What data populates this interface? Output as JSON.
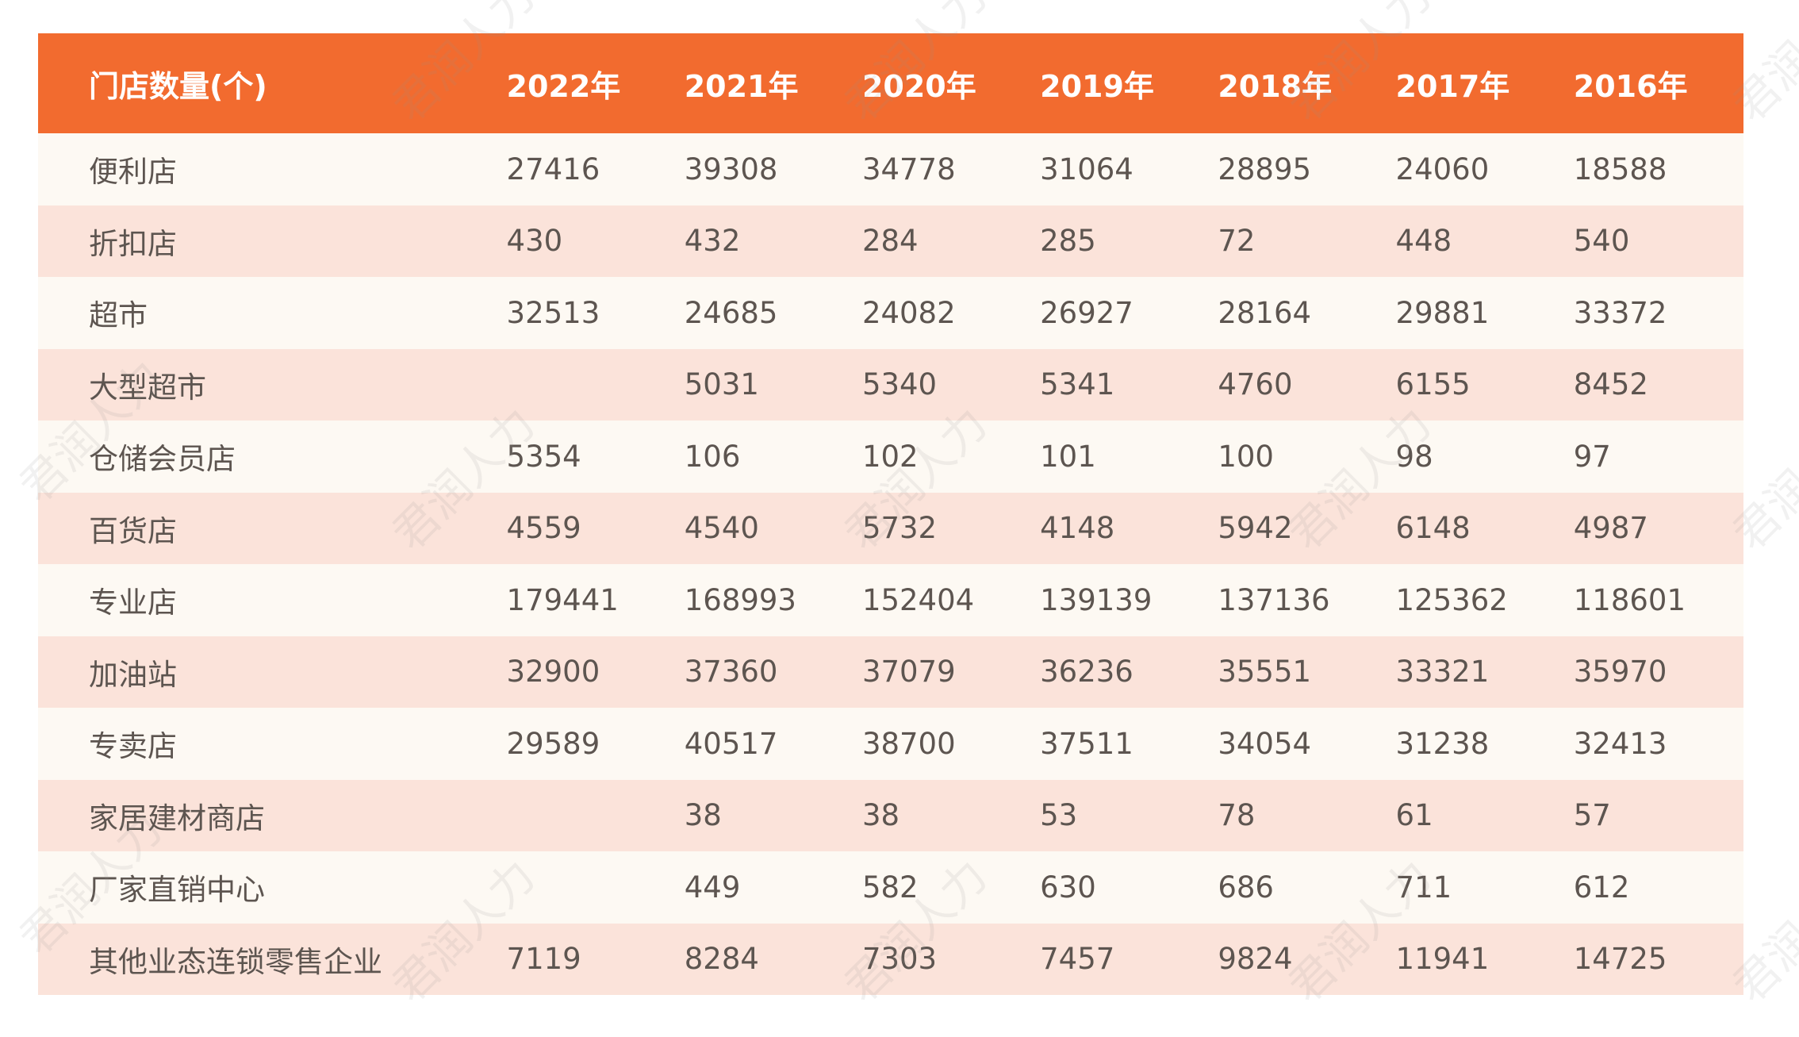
{
  "chart_data": {
    "type": "table",
    "header": {
      "corner": "门店数量(个)",
      "years": [
        "2022年",
        "2021年",
        "2020年",
        "2019年",
        "2018年",
        "2017年",
        "2016年"
      ]
    },
    "rows": [
      {
        "label": "便利店",
        "values": [
          "27416",
          "39308",
          "34778",
          "31064",
          "28895",
          "24060",
          "18588"
        ]
      },
      {
        "label": "折扣店",
        "values": [
          "430",
          "432",
          "284",
          "285",
          "72",
          "448",
          "540"
        ]
      },
      {
        "label": "超市",
        "values": [
          "32513",
          "24685",
          "24082",
          "26927",
          "28164",
          "29881",
          "33372"
        ]
      },
      {
        "label": "大型超市",
        "values": [
          "",
          "5031",
          "5340",
          "5341",
          "4760",
          "6155",
          "8452"
        ]
      },
      {
        "label": "仓储会员店",
        "values": [
          "5354",
          "106",
          "102",
          "101",
          "100",
          "98",
          "97"
        ]
      },
      {
        "label": "百货店",
        "values": [
          "4559",
          "4540",
          "5732",
          "4148",
          "5942",
          "6148",
          "4987"
        ]
      },
      {
        "label": "专业店",
        "values": [
          "179441",
          "168993",
          "152404",
          "139139",
          "137136",
          "125362",
          "118601"
        ]
      },
      {
        "label": "加油站",
        "values": [
          "32900",
          "37360",
          "37079",
          "36236",
          "35551",
          "33321",
          "35970"
        ]
      },
      {
        "label": "专卖店",
        "values": [
          "29589",
          "40517",
          "38700",
          "37511",
          "34054",
          "31238",
          "32413"
        ]
      },
      {
        "label": "家居建材商店",
        "values": [
          "",
          "38",
          "38",
          "53",
          "78",
          "61",
          "57"
        ]
      },
      {
        "label": "厂家直销中心",
        "values": [
          "",
          "449",
          "582",
          "630",
          "686",
          "711",
          "612"
        ]
      },
      {
        "label": "其他业态连锁零售企业",
        "values": [
          "7119",
          "8284",
          "7303",
          "7457",
          "9824",
          "11941",
          "14725"
        ]
      }
    ]
  },
  "watermark": "君润人力",
  "colors": {
    "header_bg": "#f26b2f",
    "header_text": "#ffffff",
    "row_light": "#fdf9f3",
    "row_tint": "#fbe3da",
    "cell_text": "#5d5550"
  }
}
